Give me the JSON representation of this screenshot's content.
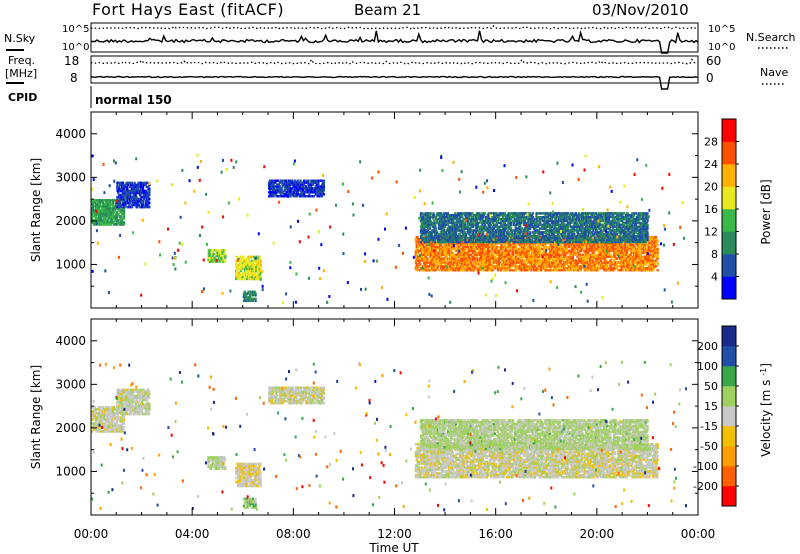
{
  "header": {
    "title": "Fort Hays East (fitACF)",
    "beam": "Beam 21",
    "date": "03/Nov/2010"
  },
  "status_panels": {
    "nsky": {
      "label": "N.Sky",
      "ticks": [
        "10^5",
        "10^0"
      ]
    },
    "nsearch": {
      "label": "N.Search",
      "ticks": [
        "10^5",
        "10^0"
      ]
    },
    "freq": {
      "label_line1": "Freq.",
      "label_line2": "[MHz]",
      "ticks": [
        "18",
        "8"
      ]
    },
    "nave": {
      "label": "Nave",
      "ticks": [
        "60",
        "0"
      ]
    },
    "cpid": {
      "label": "CPID",
      "value": "normal 150"
    }
  },
  "x_axis": {
    "label": "Time UT",
    "ticks": [
      "00:00",
      "04:00",
      "08:00",
      "12:00",
      "16:00",
      "20:00",
      "00:00"
    ],
    "hours": [
      0,
      4,
      8,
      12,
      16,
      20,
      24
    ]
  },
  "chart_data": [
    {
      "type": "heatmap",
      "title": "Power",
      "xlabel": "Time UT",
      "ylabel": "Slant Range [km]",
      "xlim": [
        0,
        24
      ],
      "ylim": [
        0,
        4500
      ],
      "yticks": [
        1000,
        2000,
        3000,
        4000
      ],
      "colorbar": {
        "label": "Power [dB]",
        "ticks": [
          "28",
          "24",
          "20",
          "16",
          "12",
          "8",
          "4"
        ],
        "range": [
          0,
          32
        ],
        "colors": [
          "#0000ff",
          "#1f4fa8",
          "#2a8a5a",
          "#3ab84a",
          "#e8e820",
          "#ffb000",
          "#ff5000",
          "#ff0000"
        ]
      },
      "echo_regions": [
        {
          "t": [
            0.0,
            1.3
          ],
          "r": [
            1900,
            2500
          ],
          "level": 12
        },
        {
          "t": [
            1.0,
            2.3
          ],
          "r": [
            2300,
            2900
          ],
          "level": 5
        },
        {
          "t": [
            4.6,
            5.3
          ],
          "r": [
            1050,
            1350
          ],
          "level": 16
        },
        {
          "t": [
            5.7,
            6.7
          ],
          "r": [
            650,
            1200
          ],
          "level": 18
        },
        {
          "t": [
            6.0,
            6.5
          ],
          "r": [
            150,
            400
          ],
          "level": 10
        },
        {
          "t": [
            7.0,
            9.2
          ],
          "r": [
            2550,
            2950
          ],
          "level": 5
        },
        {
          "t": [
            12.8,
            22.4
          ],
          "r": [
            850,
            1650
          ],
          "level": 24
        },
        {
          "t": [
            13.0,
            22.0
          ],
          "r": [
            1500,
            2200
          ],
          "level": 8
        }
      ]
    },
    {
      "type": "heatmap",
      "title": "Velocity",
      "xlabel": "Time UT",
      "ylabel": "Slant Range [km]",
      "xlim": [
        0,
        24
      ],
      "ylim": [
        0,
        4500
      ],
      "yticks": [
        1000,
        2000,
        3000,
        4000
      ],
      "colorbar": {
        "label": "Velocity [m s^-1]",
        "ticks": [
          "200",
          "100",
          "50",
          "15",
          "-15",
          "-50",
          "-100",
          "-200"
        ],
        "range": [
          -250,
          250
        ],
        "colors": [
          "#ff0000",
          "#ff6000",
          "#ffa000",
          "#f0c000",
          "#c8c8c8",
          "#a0d060",
          "#3aa84a",
          "#1f4fa8",
          "#1a2a8a"
        ]
      },
      "echo_regions": [
        {
          "t": [
            0.0,
            1.3
          ],
          "r": [
            1900,
            2500
          ],
          "level": 0
        },
        {
          "t": [
            1.0,
            2.3
          ],
          "r": [
            2300,
            2900
          ],
          "level": 10
        },
        {
          "t": [
            4.6,
            5.3
          ],
          "r": [
            1050,
            1350
          ],
          "level": 30
        },
        {
          "t": [
            5.7,
            6.7
          ],
          "r": [
            650,
            1200
          ],
          "level": -20
        },
        {
          "t": [
            6.0,
            6.5
          ],
          "r": [
            150,
            400
          ],
          "level": 60
        },
        {
          "t": [
            7.0,
            9.2
          ],
          "r": [
            2550,
            2950
          ],
          "level": 5
        },
        {
          "t": [
            12.8,
            22.4
          ],
          "r": [
            850,
            1650
          ],
          "level": 0
        },
        {
          "t": [
            13.0,
            22.0
          ],
          "r": [
            1500,
            2200
          ],
          "level": 40
        }
      ]
    }
  ]
}
